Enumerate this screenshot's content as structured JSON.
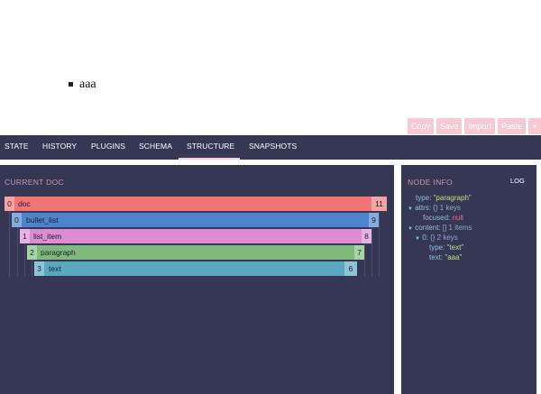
{
  "editor": {
    "bullet_text": "aaa"
  },
  "actions": [
    "Copy",
    "Save",
    "Import",
    "Paste",
    "×"
  ],
  "tabs": [
    "STATE",
    "HISTORY",
    "PLUGINS",
    "SCHEMA",
    "STRUCTURE",
    "SNAPSHOTS"
  ],
  "active_tab": "STRUCTURE",
  "structure": {
    "title": "CURRENT DOC",
    "rows": [
      {
        "start": "0",
        "name": "doc",
        "end": "11",
        "color": "#f37474",
        "tint": "#f5a3a3"
      },
      {
        "start": "0",
        "name": "bullet_list",
        "end": "9",
        "color": "#4d85cc",
        "tint": "#86abdc"
      },
      {
        "start": "1",
        "name": "list_item",
        "end": "8",
        "color": "#db8cd3",
        "tint": "#e8b3e3"
      },
      {
        "start": "2",
        "name": "paragraph",
        "end": "7",
        "color": "#7fb97b",
        "tint": "#a8d3a5"
      },
      {
        "start": "3",
        "name": "text",
        "end": "6",
        "color": "#5aa7c0",
        "tint": "#8ec5d6"
      }
    ]
  },
  "node_info": {
    "title": "NODE INFO",
    "log_label": "LOG",
    "type_key": "type:",
    "type_val": "\"paragraph\"",
    "attrs_key": "attrs:",
    "attrs_meta": "{} 1 keys",
    "focused_key": "focused:",
    "focused_val": "null",
    "content_key": "content:",
    "content_meta": "[] 1 items",
    "item_key": "0:",
    "item_meta": "{} 2 keys",
    "item_type_key": "type:",
    "item_type_val": "\"text\"",
    "item_text_key": "text:",
    "item_text_val": "\"aaa\""
  }
}
